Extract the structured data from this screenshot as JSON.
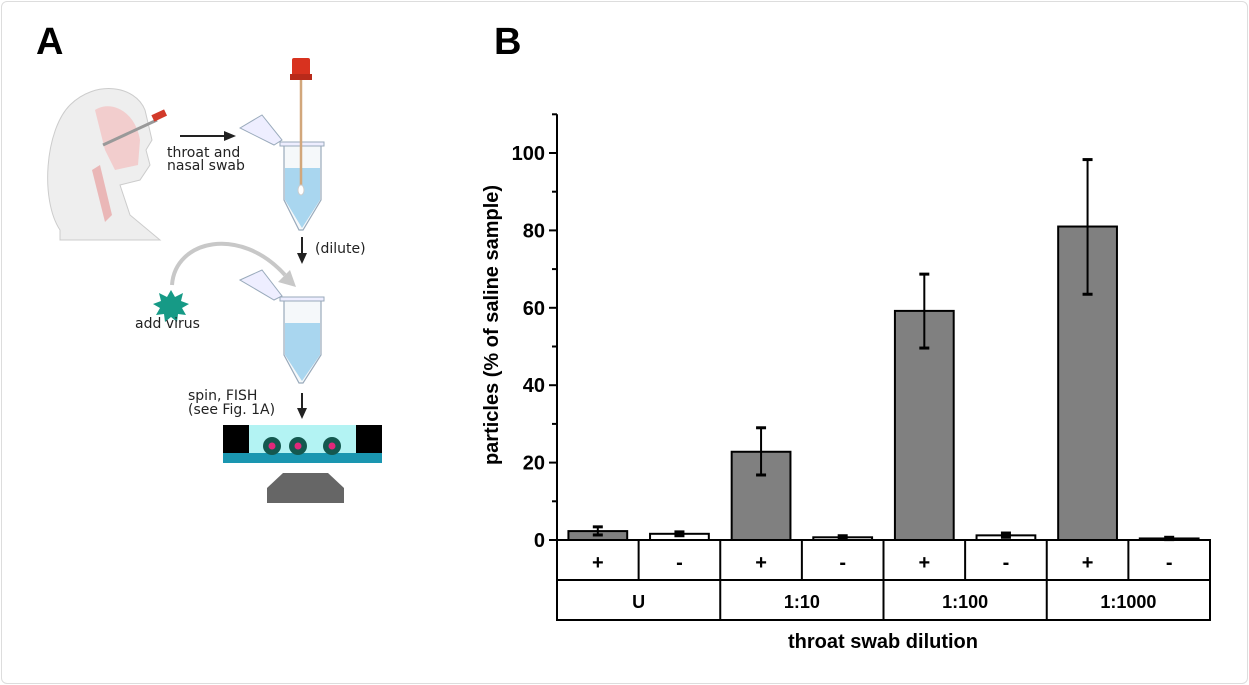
{
  "panel_a": {
    "label": "A",
    "step1": [
      "throat and",
      "nasal swab"
    ],
    "step2": "(dilute)",
    "step3": "add virus",
    "step4": [
      "spin, FISH",
      "(see Fig. 1A)"
    ]
  },
  "panel_b": {
    "label": "B"
  },
  "chart_data": {
    "type": "bar",
    "ylabel": "particles (% of saline sample)",
    "xlabel": "throat swab dilution",
    "ylim": [
      0,
      110
    ],
    "yticks": [
      0,
      20,
      40,
      60,
      80,
      100
    ],
    "groups": [
      "U",
      "1:10",
      "1:100",
      "1:1000"
    ],
    "categories": [
      "+",
      "-",
      "+",
      "-",
      "+",
      "-",
      "+",
      "-"
    ],
    "values": [
      2.3,
      1.6,
      22.8,
      0.7,
      59.2,
      1.2,
      81.0,
      0.4
    ],
    "error_low": [
      1.3,
      1.1,
      16.8,
      0.3,
      49.6,
      0.7,
      63.5,
      0.1
    ],
    "error_high": [
      3.4,
      2.1,
      29.0,
      1.1,
      68.7,
      1.8,
      98.3,
      0.7
    ],
    "colors": {
      "plus": "#808080",
      "minus": "#ffffff"
    },
    "grid": false
  }
}
